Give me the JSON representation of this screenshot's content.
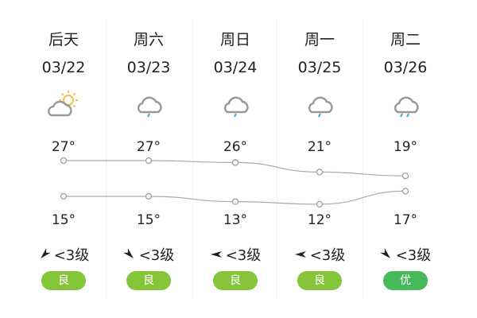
{
  "days": [
    {
      "day": "后天",
      "date": "03/22",
      "icon": "partly-cloudy-icon",
      "high": "27°",
      "low": "15°",
      "wind": "<3级",
      "wind_dir": "southwest",
      "aqi": "良",
      "aqi_color": "#86c43a"
    },
    {
      "day": "周六",
      "date": "03/23",
      "icon": "light-rain-icon",
      "high": "27°",
      "low": "15°",
      "wind": "<3级",
      "wind_dir": "southeast",
      "aqi": "良",
      "aqi_color": "#86c43a"
    },
    {
      "day": "周日",
      "date": "03/24",
      "icon": "light-rain-icon",
      "high": "26°",
      "low": "13°",
      "wind": "<3级",
      "wind_dir": "west",
      "aqi": "良",
      "aqi_color": "#86c43a"
    },
    {
      "day": "周一",
      "date": "03/25",
      "icon": "light-rain-icon",
      "high": "21°",
      "low": "12°",
      "wind": "<3级",
      "wind_dir": "west",
      "aqi": "良",
      "aqi_color": "#86c43a"
    },
    {
      "day": "周二",
      "date": "03/26",
      "icon": "moderate-rain-icon",
      "high": "19°",
      "low": "17°",
      "wind": "<3级",
      "wind_dir": "southeast",
      "aqi": "优",
      "aqi_color": "#46b95a"
    }
  ],
  "high_temps": [
    27,
    27,
    26,
    21,
    19
  ],
  "low_temps": [
    15,
    15,
    13,
    12,
    17
  ]
}
